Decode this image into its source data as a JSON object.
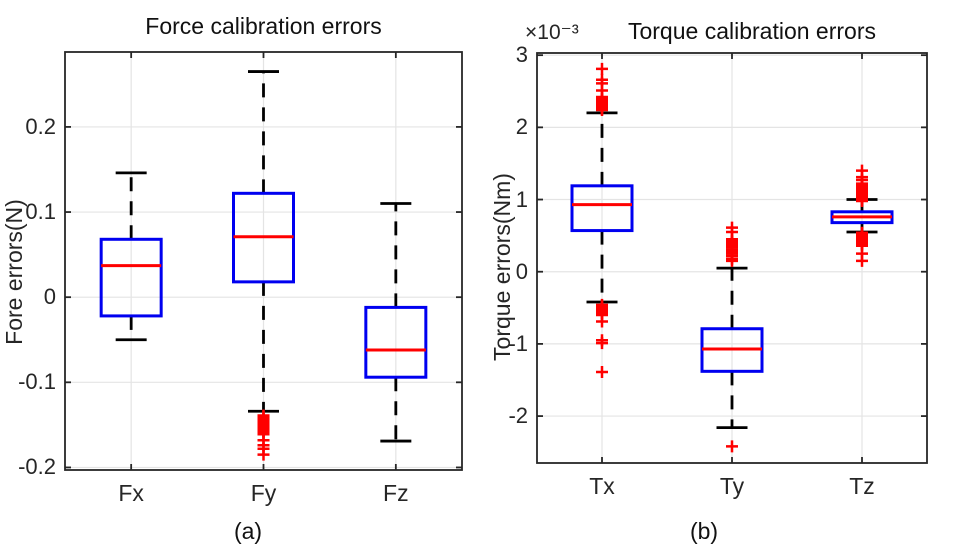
{
  "figure": {
    "background": "#ffffff"
  },
  "colors": {
    "box": "#0000f0",
    "median": "#ff0000",
    "outlier": "#ff0000",
    "whisker": "#000000",
    "axis": "#262626",
    "grid": "#e4e4e4",
    "tick_text": "#262626",
    "title_text": "#111111"
  },
  "chart_data": [
    {
      "id": "force",
      "type": "boxplot",
      "title": "Force calibration errors",
      "ylabel": "Fore errors(N)",
      "caption": "(a)",
      "unit_multiplier": "",
      "grid": "on",
      "categories": [
        "Fx",
        "Fy",
        "Fz"
      ],
      "ytick_values": [
        -0.2,
        -0.1,
        0,
        0.1,
        0.2
      ],
      "ytick_labels": [
        "-0.2",
        "-0.1",
        "0",
        "0.1",
        "0.2"
      ],
      "ylim": [
        -0.203,
        0.288
      ],
      "boxes": [
        {
          "category": "Fx",
          "whisker_low": -0.05,
          "q1": -0.022,
          "median": 0.037,
          "q3": 0.068,
          "whisker_high": 0.146,
          "outliers": []
        },
        {
          "category": "Fy",
          "whisker_low": -0.134,
          "q1": 0.018,
          "median": 0.071,
          "q3": 0.122,
          "whisker_high": 0.265,
          "outliers": [
            -0.139,
            -0.141,
            -0.143,
            -0.145,
            -0.147,
            -0.149,
            -0.151,
            -0.153,
            -0.155,
            -0.157,
            -0.159,
            -0.161,
            -0.168,
            -0.174,
            -0.178,
            -0.185
          ]
        },
        {
          "category": "Fz",
          "whisker_low": -0.169,
          "q1": -0.094,
          "median": -0.062,
          "q3": -0.012,
          "whisker_high": 0.11,
          "outliers": []
        }
      ]
    },
    {
      "id": "torque",
      "type": "boxplot",
      "title": "Torque calibration errors",
      "ylabel": "Torque errors(Nm)",
      "caption": "(b)",
      "unit_multiplier": "×10⁻³",
      "grid": "on",
      "categories": [
        "Tx",
        "Ty",
        "Tz"
      ],
      "ytick_values": [
        -2,
        -1,
        0,
        1,
        2,
        3
      ],
      "ytick_labels": [
        "-2",
        "-1",
        "0",
        "1",
        "2",
        "3"
      ],
      "ylim": [
        -2.65,
        3.03
      ],
      "boxes": [
        {
          "category": "Tx",
          "whisker_low": -0.42,
          "q1": 0.57,
          "median": 0.93,
          "q3": 1.19,
          "whisker_high": 2.2,
          "outliers": [
            2.24,
            2.26,
            2.28,
            2.3,
            2.32,
            2.34,
            2.36,
            2.38,
            2.4,
            2.42,
            2.51,
            2.61,
            2.66,
            2.81,
            -0.46,
            -0.48,
            -0.5,
            -0.52,
            -0.54,
            -0.57,
            -0.6,
            -0.69,
            -0.95,
            -0.99,
            -1.39
          ]
        },
        {
          "category": "Ty",
          "whisker_low": -2.16,
          "q1": -1.38,
          "median": -1.07,
          "q3": -0.79,
          "whisker_high": 0.05,
          "outliers": [
            0.61,
            0.55,
            0.45,
            0.43,
            0.41,
            0.39,
            0.37,
            0.34,
            0.31,
            0.28,
            0.25,
            0.22,
            0.18,
            0.15,
            -2.42
          ]
        },
        {
          "category": "Tz",
          "whisker_low": 0.55,
          "q1": 0.68,
          "median": 0.76,
          "q3": 0.83,
          "whisker_high": 1.0,
          "outliers": [
            1.4,
            1.31,
            1.27,
            1.22,
            1.2,
            1.18,
            1.16,
            1.14,
            1.12,
            1.1,
            1.08,
            1.06,
            1.04,
            1.02,
            1.0,
            0.98,
            0.54,
            0.52,
            0.5,
            0.48,
            0.46,
            0.44,
            0.42,
            0.4,
            0.38,
            0.36,
            0.25,
            0.15
          ]
        }
      ]
    }
  ]
}
